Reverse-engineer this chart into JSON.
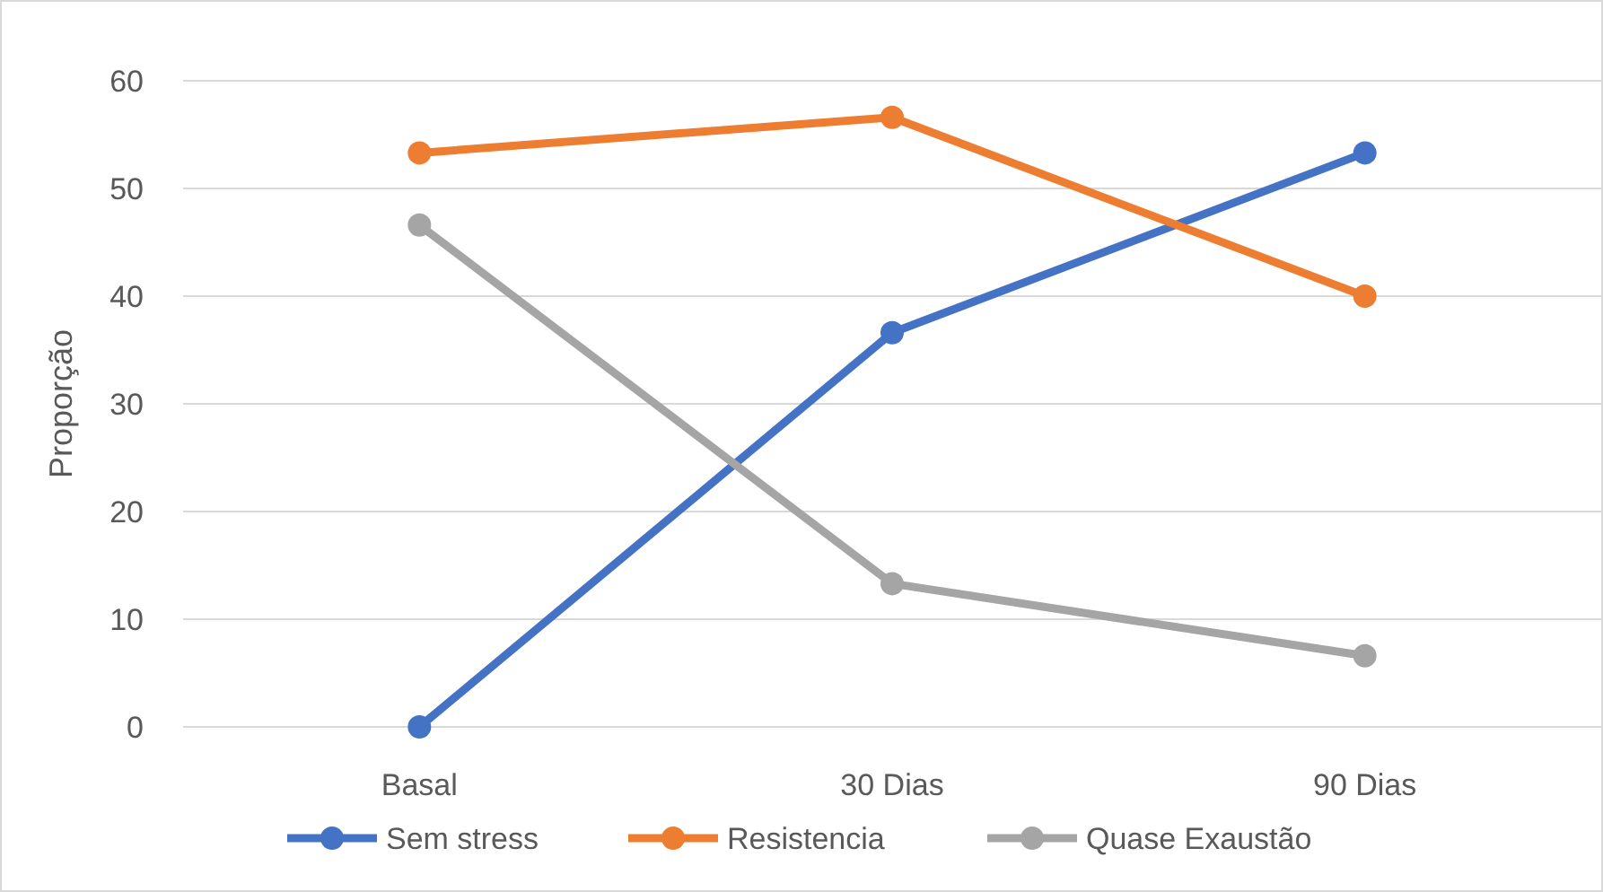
{
  "chart_data": {
    "type": "line",
    "ylabel": "Proporção",
    "categories": [
      "Basal",
      "30 Dias",
      "90 Dias"
    ],
    "series": [
      {
        "name": "Sem stress",
        "color": "#4472c4",
        "values": [
          0,
          36.6,
          53.3
        ]
      },
      {
        "name": "Resistencia",
        "color": "#ed7d31",
        "values": [
          53.3,
          56.6,
          40
        ]
      },
      {
        "name": "Quase Exaustão",
        "color": "#a5a5a5",
        "values": [
          46.6,
          13.3,
          6.6
        ]
      }
    ],
    "ylim": [
      0,
      60
    ],
    "yticks": [
      0,
      10,
      20,
      30,
      40,
      50,
      60
    ],
    "grid": "y",
    "legend": "bottom",
    "marker": "circle",
    "line_style": "solid"
  }
}
